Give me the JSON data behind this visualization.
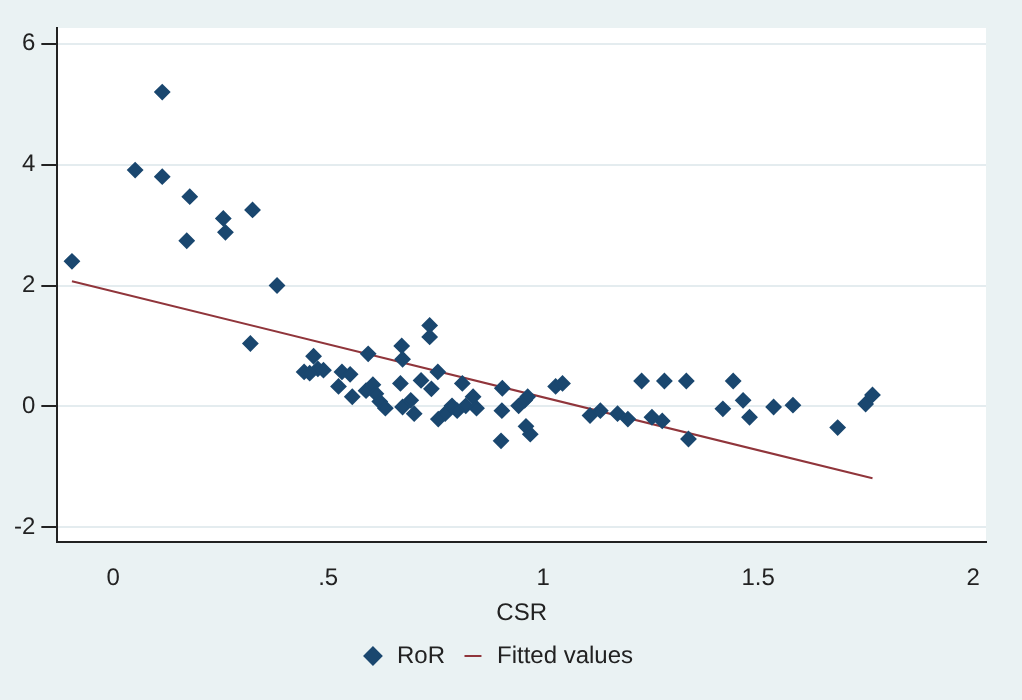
{
  "chart_data": {
    "type": "scatter",
    "xlabel": "CSR",
    "xlim": [
      -0.13,
      2.03
    ],
    "ylim": [
      -2.25,
      6.26
    ],
    "xticks": [
      0,
      {
        "value": 0.5,
        "label": ".5"
      },
      1,
      1.5,
      2
    ],
    "yticks": [
      -2,
      0,
      2,
      4,
      6
    ],
    "grid": "y",
    "legend": "bottom",
    "marker": "diamond",
    "series": [
      {
        "name": "RoR",
        "color": "#1a476f",
        "x": [
          -0.096,
          0.051,
          0.114,
          0.114,
          0.178,
          0.171,
          0.256,
          0.261,
          0.324,
          0.319,
          0.381,
          0.444,
          0.457,
          0.466,
          0.476,
          0.489,
          0.524,
          0.532,
          0.551,
          0.556,
          0.588,
          0.593,
          0.604,
          0.611,
          0.62,
          0.633,
          0.668,
          0.671,
          0.673,
          0.673,
          0.692,
          0.7,
          0.716,
          0.736,
          0.736,
          0.74,
          0.755,
          0.756,
          0.772,
          0.788,
          0.8,
          0.812,
          0.82,
          0.837,
          0.845,
          0.902,
          0.905,
          0.904,
          0.943,
          0.957,
          0.964,
          0.96,
          0.97,
          1.029,
          1.045,
          1.109,
          1.133,
          1.173,
          1.197,
          1.229,
          1.253,
          1.277,
          1.282,
          1.333,
          1.338,
          1.418,
          1.442,
          1.465,
          1.48,
          1.536,
          1.581,
          1.685,
          1.75,
          1.766
        ],
        "values": [
          2.4,
          3.91,
          5.2,
          3.8,
          3.47,
          2.74,
          3.11,
          2.88,
          3.25,
          1.04,
          2.0,
          0.57,
          0.55,
          0.83,
          0.62,
          0.6,
          0.33,
          0.57,
          0.53,
          0.16,
          0.26,
          0.87,
          0.36,
          0.21,
          0.08,
          -0.03,
          0.38,
          1.0,
          0.78,
          -0.01,
          0.1,
          -0.12,
          0.43,
          1.34,
          1.15,
          0.29,
          0.57,
          -0.21,
          -0.12,
          0.01,
          -0.07,
          0.38,
          0.01,
          0.16,
          -0.03,
          -0.57,
          0.3,
          -0.07,
          0.01,
          0.1,
          0.16,
          -0.33,
          -0.46,
          0.33,
          0.38,
          -0.15,
          -0.07,
          -0.12,
          -0.21,
          0.42,
          -0.18,
          -0.24,
          0.42,
          0.42,
          -0.54,
          -0.04,
          0.42,
          0.1,
          -0.18,
          -0.01,
          0.02,
          -0.35,
          0.04,
          0.19
        ]
      },
      {
        "name": "Fitted values",
        "type": "line",
        "color": "#90353b",
        "line_style": "solid",
        "marker": "none",
        "x": [
          -0.096,
          1.766
        ],
        "values": [
          2.07,
          -1.19
        ]
      }
    ]
  }
}
